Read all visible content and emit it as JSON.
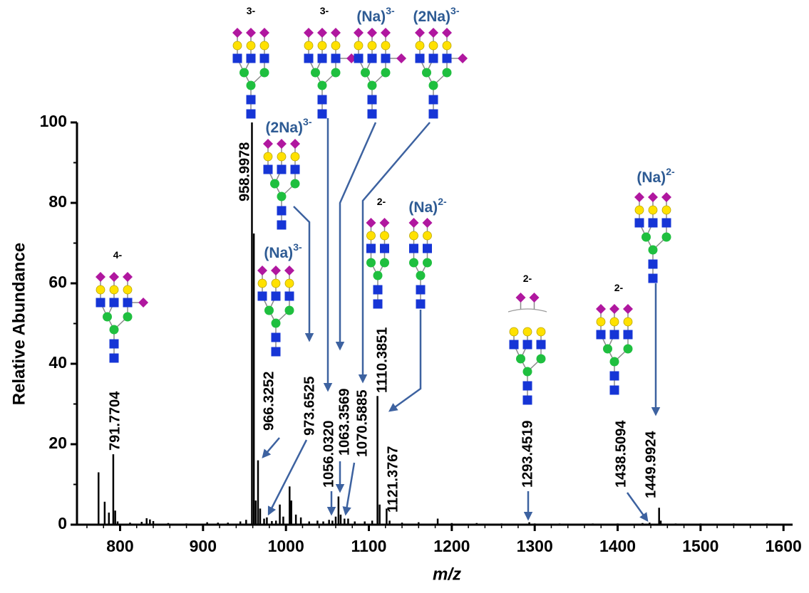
{
  "chart_data": {
    "type": "stick",
    "x_label": "m/z",
    "y_label": "Relative Abundance",
    "xlim": [
      748,
      1611
    ],
    "ylim": [
      0,
      100
    ],
    "xticks": [
      800,
      900,
      1000,
      1100,
      1200,
      1300,
      1400,
      1500,
      1600
    ],
    "yticks": [
      0,
      20,
      40,
      60,
      80,
      100
    ],
    "xminorticks": [
      760,
      780,
      820,
      840,
      860,
      880,
      920,
      940,
      960,
      980,
      1020,
      1040,
      1060,
      1080,
      1120,
      1140,
      1160,
      1180,
      1220,
      1240,
      1260,
      1280,
      1320,
      1340,
      1360,
      1380,
      1420,
      1440,
      1460,
      1480,
      1520,
      1540,
      1560,
      1580
    ],
    "yminorticks": [
      10,
      30,
      50,
      70,
      90
    ],
    "color": "#000000",
    "series": [
      {
        "x": [
          774.0,
          781.4,
          786.5,
          794.1,
          797,
          812,
          826,
          832,
          836,
          840,
          858,
          880,
          905,
          918,
          930,
          945,
          952,
          961.3,
          963.6,
          968.9,
          977,
          983,
          988,
          992.6,
          996.8,
          1004.4,
          1006.5,
          1012,
          1018,
          1028,
          1038,
          1045,
          1052,
          1060,
          1066,
          1075,
          1083,
          1095,
          1104,
          1113,
          1125,
          1140,
          1160,
          1183,
          1200,
          1230,
          1260,
          1300,
          1330,
          1370,
          1400,
          1430,
          1452,
          1470,
          1500,
          1540,
          1580
        ],
        "values": [
          13,
          5.7,
          3,
          3.5,
          0.8,
          0.5,
          0.7,
          1.6,
          1.3,
          0.9,
          0.4,
          0.3,
          0.6,
          0.5,
          0.5,
          0.8,
          1.2,
          72.4,
          6,
          4,
          1.8,
          0.9,
          1,
          5,
          2,
          9.5,
          6,
          2.5,
          1.8,
          0.8,
          1,
          0.8,
          1.2,
          2,
          2.5,
          1.5,
          0.8,
          0.8,
          1,
          5,
          1,
          0.5,
          0.6,
          1.5,
          0.4,
          0.4,
          0.3,
          0.3,
          0.3,
          0.3,
          0.3,
          0.4,
          1,
          0.3,
          0.3,
          0.3,
          0.3
        ]
      }
    ],
    "labeled_peaks": {
      "x": [
        791.7704,
        958.9978,
        966.3252,
        973.6525,
        1056.032,
        1063.3569,
        1070.5885,
        1110.3851,
        1121.3767,
        1293.4519,
        1438.5094,
        1449.9924
      ],
      "x_labels": [
        "791.7704",
        "958.9978",
        "966.3252",
        "973.6525",
        "1056.0320",
        "1063.3569",
        "1070.5885",
        "1110.3851",
        "1121.3767",
        "1293.4519",
        "1438.5094",
        "1449.9924"
      ],
      "values": [
        17.5,
        100,
        16,
        1.5,
        1,
        7,
        1.5,
        32,
        4,
        0.6,
        0.5,
        4.2
      ]
    },
    "annotations": [
      {
        "charge": "4-",
        "color": "#000000"
      },
      {
        "charge": "3-",
        "color": "#000000"
      },
      {
        "charge": "3-",
        "color": "#000000"
      },
      {
        "adduct": "(Na)",
        "charge": "3-",
        "color": "#2e5b94"
      },
      {
        "adduct": "(2Na)",
        "charge": "3-",
        "color": "#2e5b94"
      },
      {
        "adduct": "(2Na)",
        "charge": "3-",
        "color": "#2e5b94"
      },
      {
        "adduct": "(Na)",
        "charge": "3-",
        "color": "#2e5b94"
      },
      {
        "charge": "2-",
        "color": "#000000"
      },
      {
        "adduct": "(Na)",
        "charge": "2-",
        "color": "#2e5b94"
      },
      {
        "charge": "2-",
        "color": "#000000"
      },
      {
        "charge": "2-",
        "color": "#000000"
      },
      {
        "adduct": "(Na)",
        "charge": "2-",
        "color": "#2e5b94"
      }
    ]
  }
}
